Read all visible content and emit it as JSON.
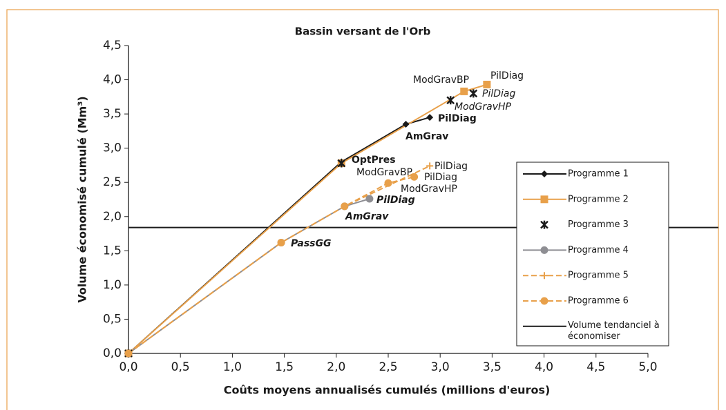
{
  "chart_data": {
    "type": "scatter",
    "title": "Bassin versant de l'Orb",
    "x_label": "Coûts moyens annualisés cumulés (millions d'euros)",
    "y_label": "Volume économisé cumulé (Mm³)",
    "xlim": [
      0,
      5
    ],
    "ylim": [
      0,
      4.5
    ],
    "xticks": [
      {
        "value": 0,
        "label": "0,0"
      },
      {
        "value": 0.5,
        "label": "0,5"
      },
      {
        "value": 1,
        "label": "1,0"
      },
      {
        "value": 1.5,
        "label": "1,5"
      },
      {
        "value": 2,
        "label": "2,0"
      },
      {
        "value": 2.5,
        "label": "2,5"
      },
      {
        "value": 3,
        "label": "3,0"
      },
      {
        "value": 3.5,
        "label": "3,5"
      },
      {
        "value": 4,
        "label": "4,0"
      },
      {
        "value": 4.5,
        "label": "4,5"
      },
      {
        "value": 5,
        "label": "5,0"
      }
    ],
    "yticks": [
      {
        "value": 0,
        "label": "0,0"
      },
      {
        "value": 0.5,
        "label": "0,5"
      },
      {
        "value": 1,
        "label": "1,0"
      },
      {
        "value": 1.5,
        "label": "1,5"
      },
      {
        "value": 2,
        "label": "2,0"
      },
      {
        "value": 2.5,
        "label": "2,5"
      },
      {
        "value": 3,
        "label": "3,0"
      },
      {
        "value": 3.5,
        "label": "3,5"
      },
      {
        "value": 4,
        "label": "4,0"
      },
      {
        "value": 4.5,
        "label": "4,5"
      }
    ],
    "grid": false,
    "legend": "right",
    "series": [
      {
        "name": "Programme 1",
        "color": "#1a1a1a",
        "marker": "diamond",
        "line": "solid",
        "x": [
          0,
          2.05,
          2.67,
          2.9
        ],
        "values": [
          0,
          2.8,
          3.35,
          3.45
        ]
      },
      {
        "name": "Programme 2",
        "color": "#e8a04a",
        "marker": "square",
        "line": "solid",
        "x": [
          0,
          2.05,
          3.23,
          3.45
        ],
        "values": [
          0,
          2.78,
          3.83,
          3.93
        ]
      },
      {
        "name": "Programme 3",
        "color": "#1a1a1a",
        "marker": "star",
        "line": "none",
        "x": [
          0,
          2.05,
          3.1,
          3.32
        ],
        "values": [
          0,
          2.78,
          3.7,
          3.8
        ]
      },
      {
        "name": "Programme 4",
        "color": "#8e8e93",
        "marker": "circle",
        "line": "solid",
        "x": [
          0,
          1.47,
          2.08,
          2.32
        ],
        "values": [
          0,
          1.62,
          2.15,
          2.26
        ]
      },
      {
        "name": "Programme 5",
        "color": "#e8a04a",
        "marker": "plus",
        "line": "dashed",
        "x": [
          0,
          1.47,
          2.08,
          2.9
        ],
        "values": [
          0,
          1.62,
          2.15,
          2.74
        ]
      },
      {
        "name": "Programme 6",
        "color": "#e8a04a",
        "marker": "circle",
        "line": "dashed",
        "x": [
          0,
          1.47,
          2.08,
          2.5,
          2.75
        ],
        "values": [
          0,
          1.62,
          2.15,
          2.49,
          2.58
        ]
      }
    ],
    "reference_line": {
      "name": "Volume tendanciel à économiser",
      "value": 1.84,
      "color": "#1a1a1a"
    },
    "annotations": [
      {
        "text": "PilDiag",
        "bold": false,
        "italic": false
      },
      {
        "text": "ModGravBP",
        "bold": false,
        "italic": false
      },
      {
        "text": "PilDiag",
        "bold": false,
        "italic": true
      },
      {
        "text": "ModGravHP",
        "bold": false,
        "italic": true
      },
      {
        "text": "PilDiag",
        "bold": true,
        "italic": false
      },
      {
        "text": "AmGrav",
        "bold": true,
        "italic": false
      },
      {
        "text": "OptPres",
        "bold": true,
        "italic": false
      },
      {
        "text": "ModGravBP",
        "bold": false,
        "italic": false
      },
      {
        "text": "PilDiag",
        "bold": false,
        "italic": false
      },
      {
        "text": "PilDiag",
        "bold": false,
        "italic": false
      },
      {
        "text": "ModGravHP",
        "bold": false,
        "italic": false
      },
      {
        "text": "PilDiag",
        "bold": true,
        "italic": true
      },
      {
        "text": "AmGrav",
        "bold": true,
        "italic": true
      },
      {
        "text": "PassGG",
        "bold": true,
        "italic": true
      }
    ]
  }
}
